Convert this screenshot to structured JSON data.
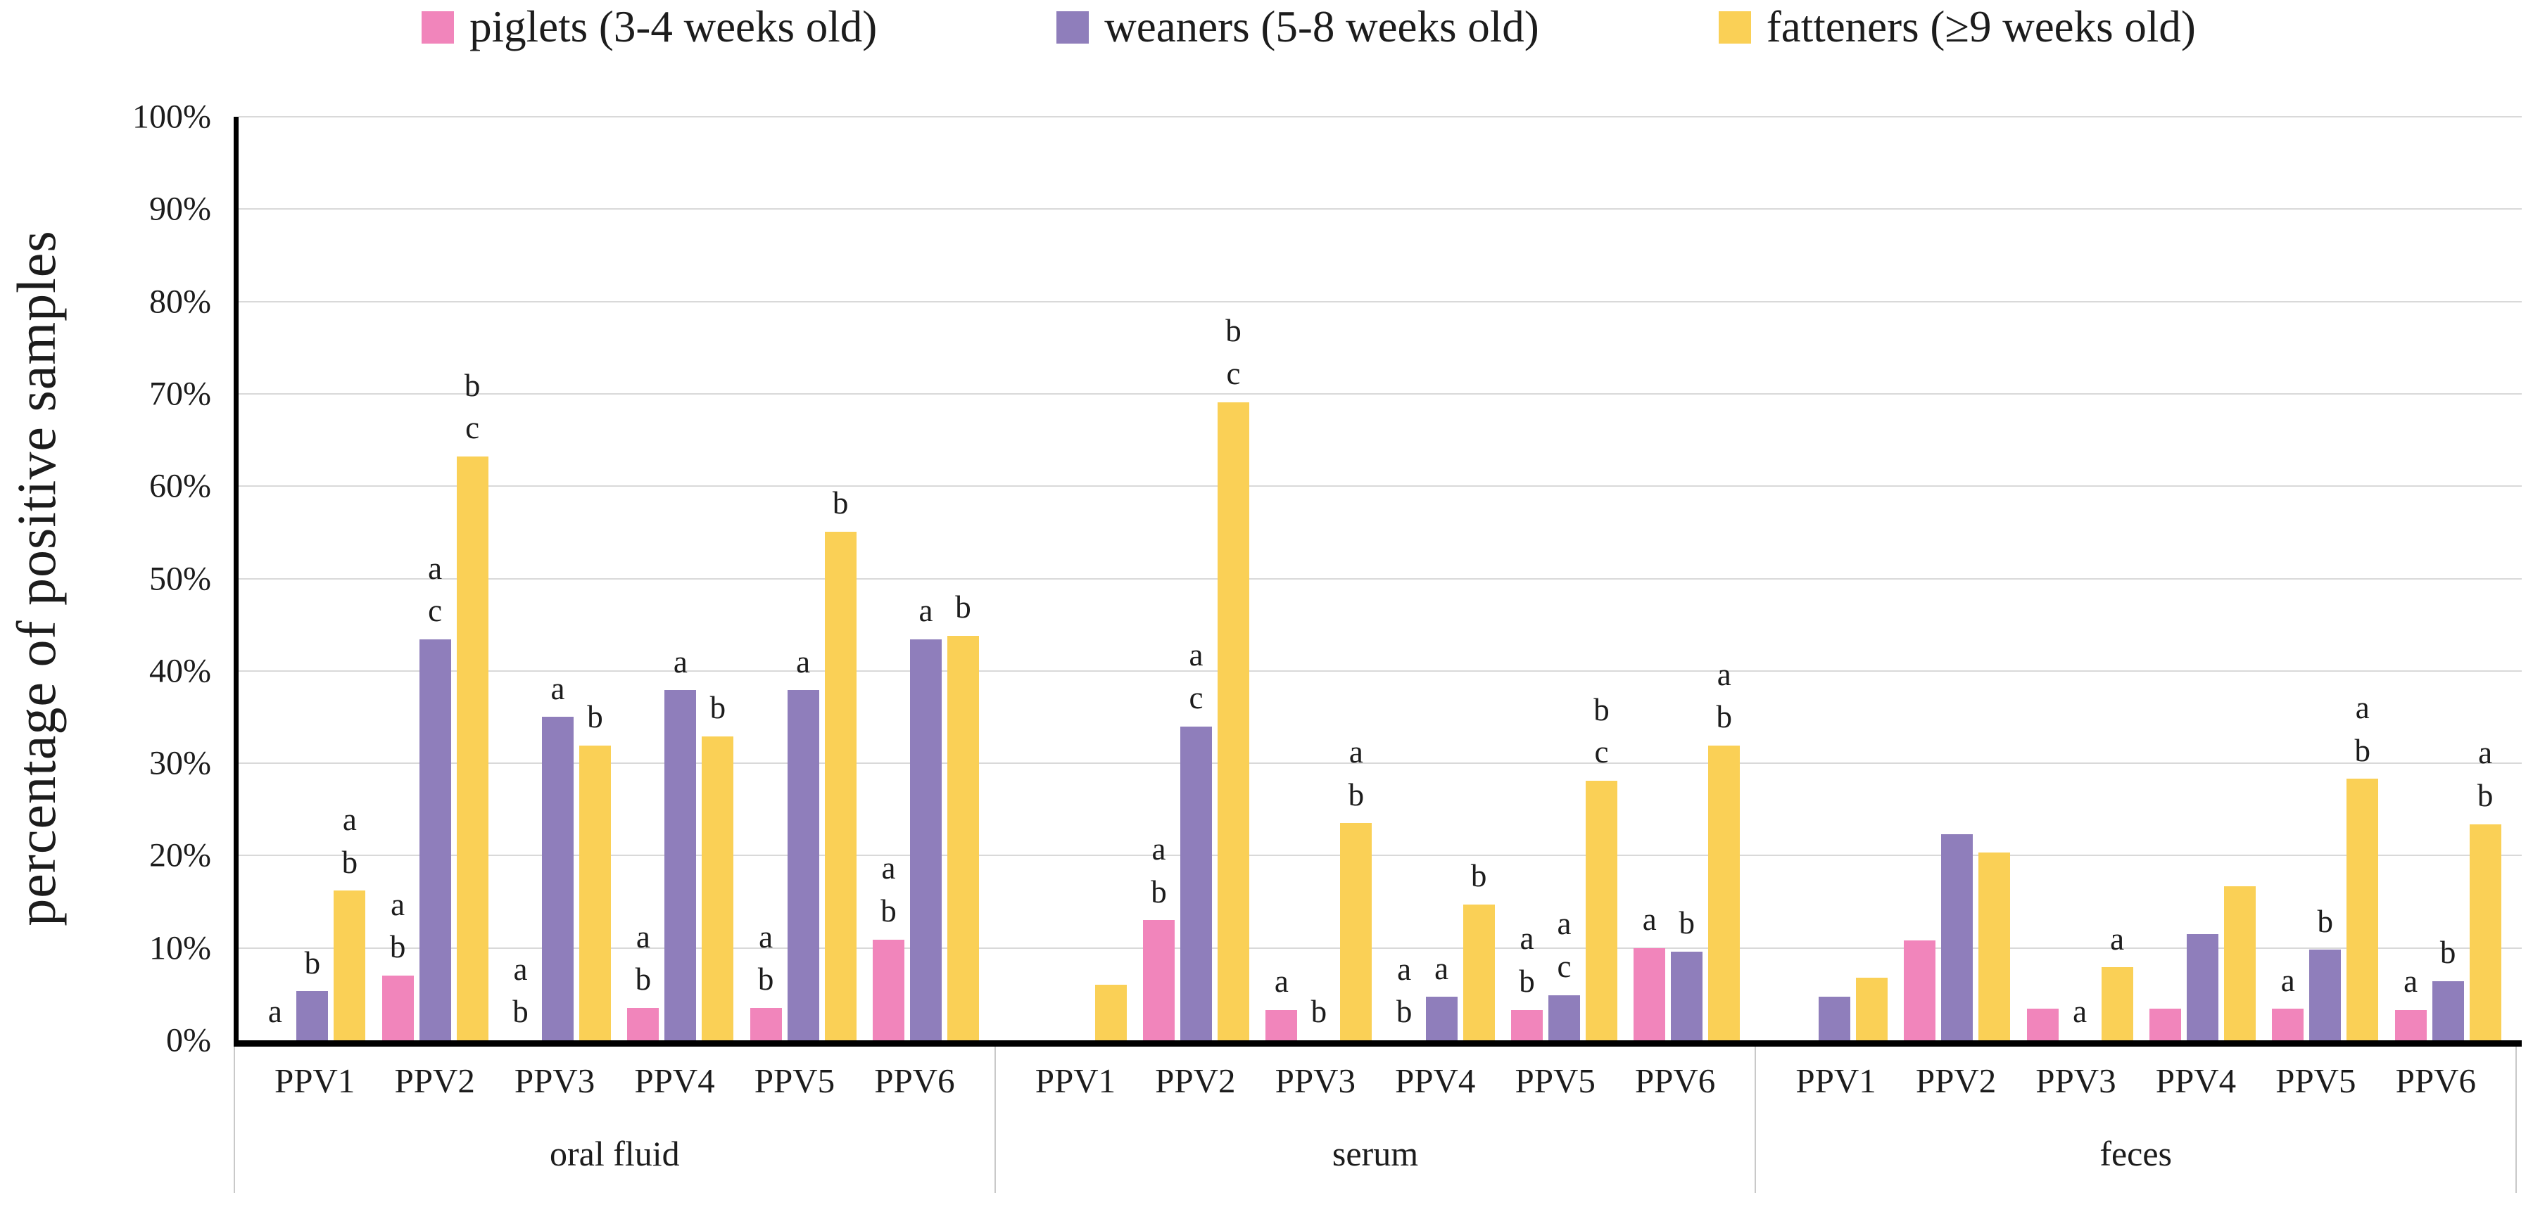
{
  "legend": {
    "items": [
      {
        "label": "piglets (3-4 weeks old)",
        "color": "#F185BB"
      },
      {
        "label": "weaners (5-8 weeks old)",
        "color": "#8F7EBB"
      },
      {
        "label": "fatteners (≥9 weeks old)",
        "color": "#FAD056"
      }
    ]
  },
  "y_axis": {
    "title": "percentage of positive samples",
    "ticks_top_to_bottom": [
      "100%",
      "90%",
      "80%",
      "70%",
      "60%",
      "50%",
      "40%",
      "30%",
      "20%",
      "10%",
      "0%"
    ]
  },
  "chart_data": {
    "type": "bar",
    "title": "",
    "ylabel": "percentage of positive samples",
    "xlabel": "",
    "ylim": [
      0,
      100
    ],
    "y_tick_step": 10,
    "grid": true,
    "legend_position": "top",
    "series": [
      "piglets (3-4 weeks old)",
      "weaners (5-8 weeks old)",
      "fatteners (≥9 weeks old)"
    ],
    "colors": [
      "#F185BB",
      "#8F7EBB",
      "#FAD056"
    ],
    "gridline_color": "#d9d9d9",
    "axis_color": "#000000",
    "units": "percent positive",
    "panels": [
      {
        "group": "oral fluid",
        "categories": [
          "PPV1",
          "PPV2",
          "PPV3",
          "PPV4",
          "PPV5",
          "PPV6"
        ],
        "bars": [
          {
            "category": "PPV1",
            "values": [
              0,
              5.3,
              16.2
            ],
            "letters": [
              [
                "a"
              ],
              [
                "b"
              ],
              [
                "a",
                "b"
              ]
            ]
          },
          {
            "category": "PPV2",
            "values": [
              7,
              43.4,
              63.2
            ],
            "letters": [
              [
                "a",
                "b"
              ],
              [
                "a",
                "c"
              ],
              [
                "b",
                "c"
              ]
            ]
          },
          {
            "category": "PPV3",
            "values": [
              0,
              35,
              31.9
            ],
            "letters": [
              [
                "a",
                "b"
              ],
              [
                "a"
              ],
              [
                "b"
              ]
            ]
          },
          {
            "category": "PPV4",
            "values": [
              3.5,
              37.9,
              32.9
            ],
            "letters": [
              [
                "a",
                "b"
              ],
              [
                "a"
              ],
              [
                "b"
              ]
            ]
          },
          {
            "category": "PPV5",
            "values": [
              3.5,
              37.9,
              55.1
            ],
            "letters": [
              [
                "a",
                "b"
              ],
              [
                "a"
              ],
              [
                "b"
              ]
            ]
          },
          {
            "category": "PPV6",
            "values": [
              10.9,
              43.4,
              43.8
            ],
            "letters": [
              [
                "a",
                "b"
              ],
              [
                "a"
              ],
              [
                "b"
              ]
            ]
          }
        ]
      },
      {
        "group": "serum",
        "categories": [
          "PPV1",
          "PPV2",
          "PPV3",
          "PPV4",
          "PPV5",
          "PPV6"
        ],
        "bars": [
          {
            "category": "PPV1",
            "values": [
              0,
              0,
              6
            ],
            "letters": [
              [],
              [],
              []
            ]
          },
          {
            "category": "PPV2",
            "values": [
              13,
              34,
              69.1
            ],
            "letters": [
              [
                "a",
                "b"
              ],
              [
                "a",
                "c"
              ],
              [
                "b",
                "c"
              ]
            ]
          },
          {
            "category": "PPV3",
            "values": [
              3.3,
              0,
              23.5
            ],
            "letters": [
              [
                "a"
              ],
              [
                "b"
              ],
              [
                "a",
                "b"
              ]
            ]
          },
          {
            "category": "PPV4",
            "values": [
              0,
              4.7,
              14.7
            ],
            "letters": [
              [
                "a",
                "b"
              ],
              [
                "a"
              ],
              [
                "b"
              ]
            ]
          },
          {
            "category": "PPV5",
            "values": [
              3.3,
              4.9,
              28.1
            ],
            "letters": [
              [
                "a",
                "b"
              ],
              [
                "a",
                "c"
              ],
              [
                "b",
                "c"
              ]
            ]
          },
          {
            "category": "PPV6",
            "values": [
              10,
              9.6,
              31.9
            ],
            "letters": [
              [
                "a"
              ],
              [
                "b"
              ],
              [
                "a",
                "b"
              ]
            ]
          }
        ]
      },
      {
        "group": "feces",
        "categories": [
          "PPV1",
          "PPV2",
          "PPV3",
          "PPV4",
          "PPV5",
          "PPV6"
        ],
        "bars": [
          {
            "category": "PPV1",
            "values": [
              0,
              4.7,
              6.8
            ],
            "letters": [
              [],
              [],
              []
            ]
          },
          {
            "category": "PPV2",
            "values": [
              10.8,
              22.3,
              20.3
            ],
            "letters": [
              [],
              [],
              []
            ]
          },
          {
            "category": "PPV3",
            "values": [
              3.4,
              0,
              7.9
            ],
            "letters": [
              [],
              [
                "a"
              ],
              [
                "a"
              ]
            ]
          },
          {
            "category": "PPV4",
            "values": [
              3.4,
              11.5,
              16.7
            ],
            "letters": [
              [],
              [],
              []
            ]
          },
          {
            "category": "PPV5",
            "values": [
              3.4,
              9.8,
              28.3
            ],
            "letters": [
              [
                "a"
              ],
              [
                "b"
              ],
              [
                "a",
                "b"
              ]
            ]
          },
          {
            "category": "PPV6",
            "values": [
              3.3,
              6.4,
              23.4
            ],
            "letters": [
              [
                "a"
              ],
              [
                "b"
              ],
              [
                "a",
                "b"
              ]
            ]
          }
        ]
      }
    ]
  }
}
